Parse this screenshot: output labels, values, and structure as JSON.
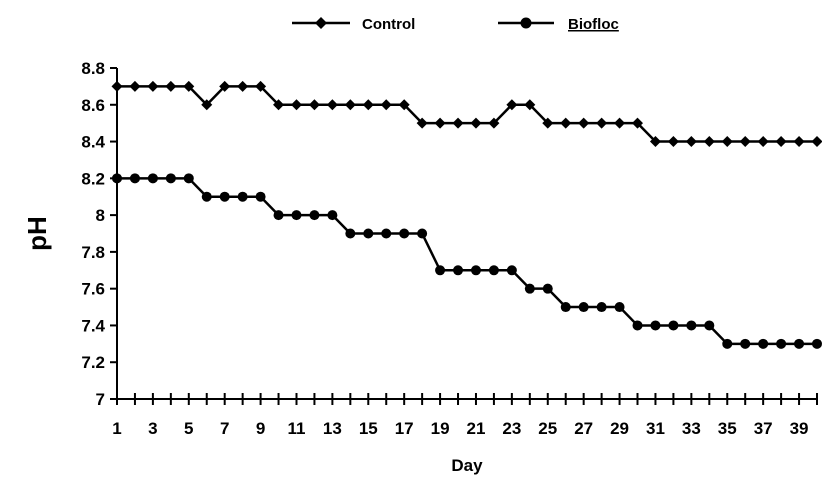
{
  "chart_data": {
    "type": "line",
    "xlabel": "Day",
    "ylabel": "pH",
    "ylim": [
      7,
      8.8
    ],
    "y_ticks": [
      "7",
      "7.2",
      "7.4",
      "7.6",
      "7.8",
      "8",
      "8.2",
      "8.4",
      "8.6",
      "8.8"
    ],
    "x_range": [
      1,
      40
    ],
    "x_tick_labels": [
      "1",
      "3",
      "5",
      "7",
      "9",
      "11",
      "13",
      "15",
      "17",
      "19",
      "21",
      "23",
      "25",
      "27",
      "29",
      "31",
      "33",
      "35",
      "37",
      "39"
    ],
    "grid": false,
    "legend_position": "top",
    "series": [
      {
        "name": "Control",
        "marker": "diamond",
        "color": "#000000",
        "x": [
          1,
          2,
          3,
          4,
          5,
          6,
          7,
          8,
          9,
          10,
          11,
          12,
          13,
          14,
          15,
          16,
          17,
          18,
          19,
          20,
          21,
          22,
          23,
          24,
          25,
          26,
          27,
          28,
          29,
          30,
          31,
          32,
          33,
          34,
          35,
          36,
          37,
          38,
          39,
          40
        ],
        "values": [
          8.7,
          8.7,
          8.7,
          8.7,
          8.7,
          8.6,
          8.7,
          8.7,
          8.7,
          8.6,
          8.6,
          8.6,
          8.6,
          8.6,
          8.6,
          8.6,
          8.6,
          8.5,
          8.5,
          8.5,
          8.5,
          8.5,
          8.6,
          8.6,
          8.5,
          8.5,
          8.5,
          8.5,
          8.5,
          8.5,
          8.4,
          8.4,
          8.4,
          8.4,
          8.4,
          8.4,
          8.4,
          8.4,
          8.4,
          8.4
        ]
      },
      {
        "name": "Biofloc",
        "marker": "circle",
        "color": "#000000",
        "x": [
          1,
          2,
          3,
          4,
          5,
          6,
          7,
          8,
          9,
          10,
          11,
          12,
          13,
          14,
          15,
          16,
          17,
          18,
          19,
          20,
          21,
          22,
          23,
          24,
          25,
          26,
          27,
          28,
          29,
          30,
          31,
          32,
          33,
          34,
          35,
          36,
          37,
          38,
          39,
          40
        ],
        "values": [
          8.2,
          8.2,
          8.2,
          8.2,
          8.2,
          8.1,
          8.1,
          8.1,
          8.1,
          8.0,
          8.0,
          8.0,
          8.0,
          7.9,
          7.9,
          7.9,
          7.9,
          7.9,
          7.7,
          7.7,
          7.7,
          7.7,
          7.7,
          7.6,
          7.6,
          7.5,
          7.5,
          7.5,
          7.5,
          7.4,
          7.4,
          7.4,
          7.4,
          7.4,
          7.3,
          7.3,
          7.3,
          7.3,
          7.3,
          7.3
        ]
      }
    ]
  }
}
